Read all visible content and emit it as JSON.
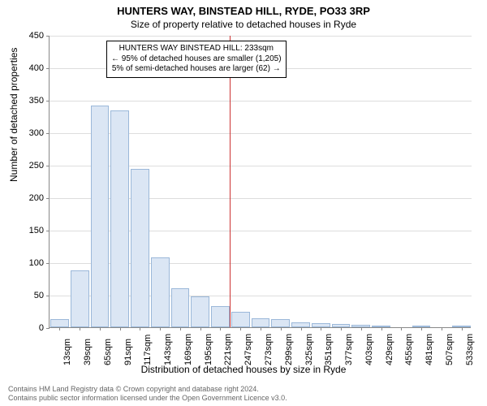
{
  "title": "HUNTERS WAY, BINSTEAD HILL, RYDE, PO33 3RP",
  "subtitle": "Size of property relative to detached houses in Ryde",
  "y_axis_label": "Number of detached properties",
  "x_axis_label": "Distribution of detached houses by size in Ryde",
  "chart": {
    "type": "histogram",
    "ylim_max": 450,
    "ytick_step": 50,
    "y_ticks": [
      0,
      50,
      100,
      150,
      200,
      250,
      300,
      350,
      400,
      450
    ],
    "x_tick_labels": [
      "13sqm",
      "39sqm",
      "65sqm",
      "91sqm",
      "117sqm",
      "143sqm",
      "169sqm",
      "195sqm",
      "221sqm",
      "247sqm",
      "273sqm",
      "299sqm",
      "325sqm",
      "351sqm",
      "377sqm",
      "403sqm",
      "429sqm",
      "455sqm",
      "481sqm",
      "507sqm",
      "533sqm"
    ],
    "bar_values": [
      12,
      88,
      341,
      334,
      244,
      108,
      60,
      47,
      32,
      24,
      14,
      12,
      8,
      6,
      5,
      4,
      3,
      0,
      2,
      0,
      2
    ],
    "bar_color": "#dbe6f4",
    "bar_border_color": "#9bb8d9",
    "grid_color": "#dddddd",
    "axis_color": "#888888",
    "background_color": "#ffffff",
    "reference_line": {
      "value_sqm": 233,
      "color": "#cc3333"
    },
    "callout": {
      "line1": "HUNTERS WAY BINSTEAD HILL: 233sqm",
      "line2": "← 95% of detached houses are smaller (1,205)",
      "line3": "5% of semi-detached houses are larger (62) →"
    }
  },
  "footer_line1": "Contains HM Land Registry data © Crown copyright and database right 2024.",
  "footer_line2": "Contains public sector information licensed under the Open Government Licence v3.0."
}
